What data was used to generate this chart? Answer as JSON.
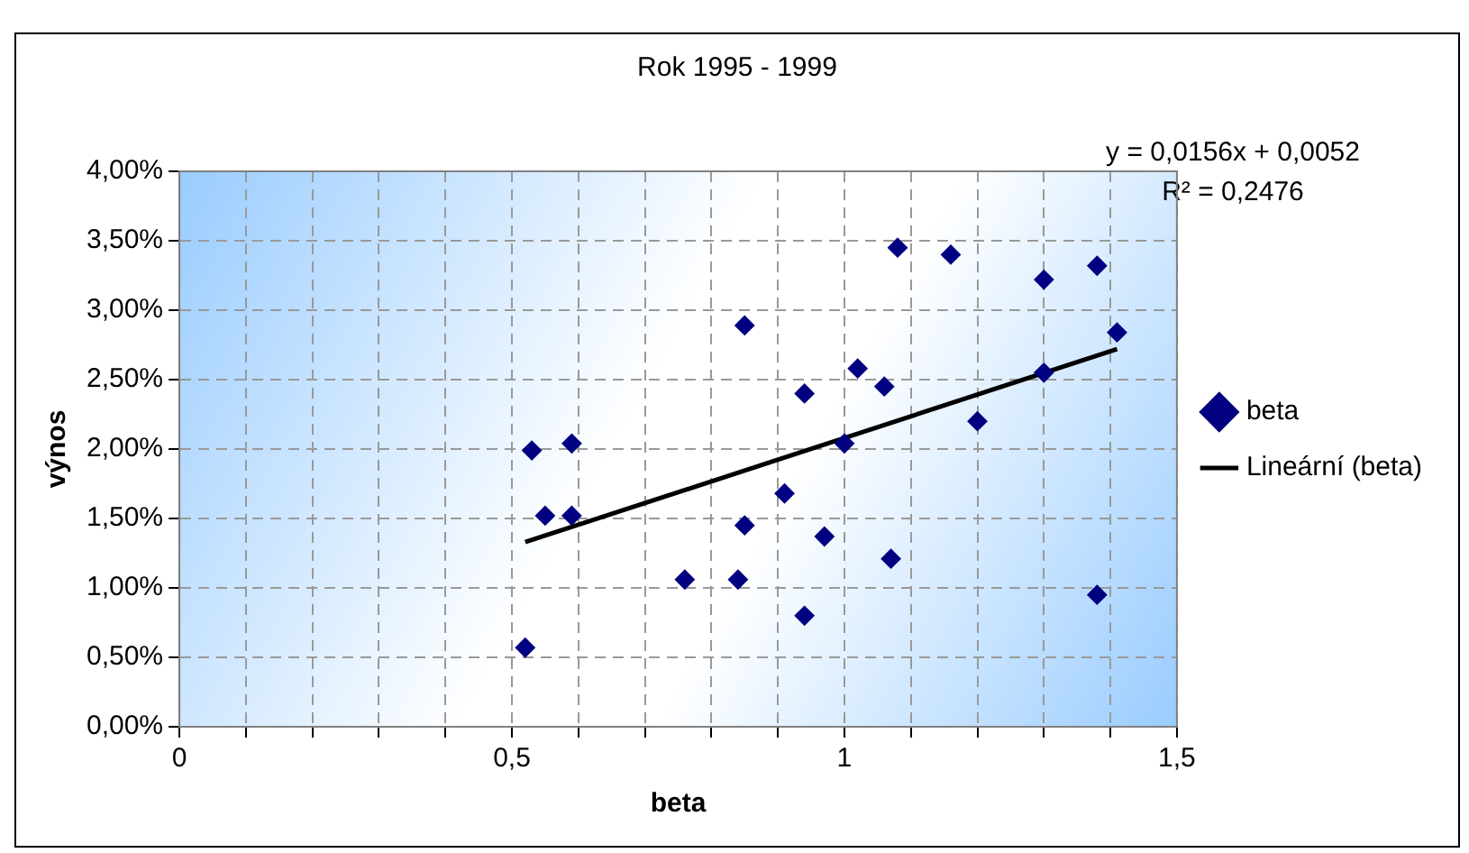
{
  "chart_data": {
    "type": "scatter",
    "title": "Rok 1995 - 1999",
    "xlabel": "beta",
    "ylabel": "výnos",
    "annotations": [
      "y = 0,0156x + 0,0052",
      "R² = 0,2476"
    ],
    "xlim": [
      0,
      1.5
    ],
    "xticks": [
      0,
      {
        "value": 0.1,
        "label": null
      },
      {
        "value": 0.2,
        "label": null
      },
      {
        "value": 0.3,
        "label": null
      },
      {
        "value": 0.4,
        "label": null
      },
      {
        "value": 0.5,
        "label": "0,5"
      },
      {
        "value": 0.6,
        "label": null
      },
      {
        "value": 0.7,
        "label": null
      },
      {
        "value": 0.8,
        "label": null
      },
      {
        "value": 0.9,
        "label": null
      },
      {
        "value": 1,
        "label": "1"
      },
      {
        "value": 1.1,
        "label": null
      },
      {
        "value": 1.2,
        "label": null
      },
      {
        "value": 1.3,
        "label": null
      },
      {
        "value": 1.4,
        "label": null
      },
      {
        "value": 1.5,
        "label": "1,5"
      }
    ],
    "ylim": [
      0,
      4
    ],
    "yticks": [
      {
        "value": 0,
        "label": "0,00%"
      },
      {
        "value": 0.5,
        "label": "0,50%"
      },
      {
        "value": 1,
        "label": "1,00%"
      },
      {
        "value": 1.5,
        "label": "1,50%"
      },
      {
        "value": 2,
        "label": "2,00%"
      },
      {
        "value": 2.5,
        "label": "2,50%"
      },
      {
        "value": 3,
        "label": "3,00%"
      },
      {
        "value": 3.5,
        "label": "3,50%"
      },
      {
        "value": 4,
        "label": "4,00%"
      }
    ],
    "grid": true,
    "legend": "right",
    "series": [
      {
        "name": "beta",
        "marker": "diamond",
        "color": "#000080",
        "x": [
          0.52,
          0.53,
          0.55,
          0.59,
          0.59,
          0.76,
          0.84,
          0.85,
          0.85,
          0.91,
          0.94,
          0.94,
          0.97,
          1.0,
          1.02,
          1.06,
          1.07,
          1.08,
          1.16,
          1.2,
          1.3,
          1.3,
          1.38,
          1.38,
          1.41
        ],
        "values": [
          0.57,
          1.99,
          1.52,
          2.04,
          1.52,
          1.06,
          1.06,
          1.45,
          2.89,
          1.68,
          0.8,
          2.4,
          1.37,
          2.04,
          2.58,
          2.45,
          1.21,
          3.45,
          3.4,
          2.2,
          3.22,
          2.55,
          0.95,
          3.32,
          2.84
        ]
      },
      {
        "name": "Lineární (beta)",
        "type": "line",
        "color": "#000000",
        "line_style": "solid",
        "x": [
          0.52,
          1.41
        ],
        "values": [
          1.33,
          2.72
        ]
      }
    ]
  }
}
